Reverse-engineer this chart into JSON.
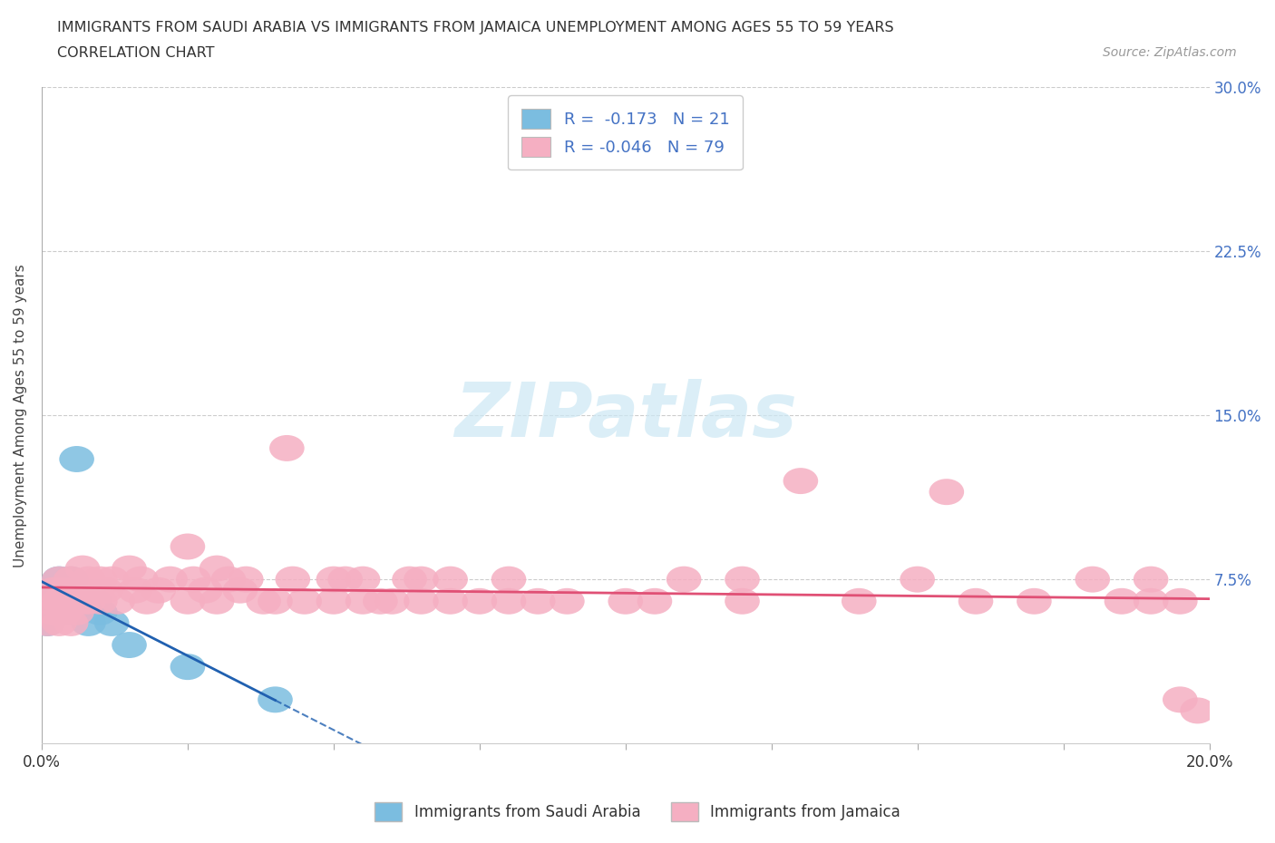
{
  "title_line1": "IMMIGRANTS FROM SAUDI ARABIA VS IMMIGRANTS FROM JAMAICA UNEMPLOYMENT AMONG AGES 55 TO 59 YEARS",
  "title_line2": "CORRELATION CHART",
  "source": "Source: ZipAtlas.com",
  "ylabel": "Unemployment Among Ages 55 to 59 years",
  "xlim": [
    0.0,
    0.2
  ],
  "ylim": [
    0.0,
    0.3
  ],
  "xtick_positions": [
    0.0,
    0.025,
    0.05,
    0.075,
    0.1,
    0.125,
    0.15,
    0.175,
    0.2
  ],
  "xticklabels": [
    "0.0%",
    "",
    "",
    "",
    "",
    "",
    "",
    "",
    "20.0%"
  ],
  "ytick_positions": [
    0.075,
    0.15,
    0.225,
    0.3
  ],
  "ytick_labels": [
    "7.5%",
    "15.0%",
    "22.5%",
    "30.0%"
  ],
  "saudi_R": -0.173,
  "saudi_N": 21,
  "jamaica_R": -0.046,
  "jamaica_N": 79,
  "saudi_color": "#7bbde0",
  "jamaica_color": "#f5afc2",
  "saudi_line_color": "#2060b0",
  "jamaica_line_color": "#e05075",
  "watermark_color": "#cce8f4",
  "saudi_x": [
    0.001,
    0.001,
    0.002,
    0.002,
    0.003,
    0.003,
    0.004,
    0.004,
    0.005,
    0.005,
    0.006,
    0.006,
    0.007,
    0.008,
    0.008,
    0.009,
    0.01,
    0.012,
    0.015,
    0.025,
    0.04
  ],
  "saudi_y": [
    0.065,
    0.055,
    0.07,
    0.06,
    0.075,
    0.065,
    0.07,
    0.06,
    0.075,
    0.065,
    0.13,
    0.06,
    0.065,
    0.065,
    0.055,
    0.065,
    0.06,
    0.055,
    0.045,
    0.035,
    0.02
  ],
  "jamaica_x": [
    0.001,
    0.001,
    0.002,
    0.002,
    0.003,
    0.003,
    0.003,
    0.004,
    0.004,
    0.005,
    0.005,
    0.005,
    0.006,
    0.006,
    0.007,
    0.007,
    0.008,
    0.008,
    0.009,
    0.01,
    0.01,
    0.011,
    0.012,
    0.013,
    0.015,
    0.016,
    0.017,
    0.018,
    0.02,
    0.022,
    0.025,
    0.025,
    0.026,
    0.028,
    0.03,
    0.03,
    0.032,
    0.034,
    0.035,
    0.038,
    0.04,
    0.042,
    0.043,
    0.045,
    0.05,
    0.05,
    0.052,
    0.055,
    0.055,
    0.058,
    0.06,
    0.063,
    0.065,
    0.065,
    0.07,
    0.07,
    0.075,
    0.08,
    0.08,
    0.085,
    0.09,
    0.1,
    0.105,
    0.11,
    0.12,
    0.12,
    0.13,
    0.14,
    0.15,
    0.155,
    0.16,
    0.17,
    0.18,
    0.185,
    0.19,
    0.19,
    0.195,
    0.195,
    0.198
  ],
  "jamaica_y": [
    0.065,
    0.055,
    0.07,
    0.06,
    0.075,
    0.065,
    0.055,
    0.07,
    0.06,
    0.075,
    0.065,
    0.055,
    0.07,
    0.06,
    0.08,
    0.065,
    0.075,
    0.065,
    0.07,
    0.075,
    0.065,
    0.07,
    0.075,
    0.065,
    0.08,
    0.07,
    0.075,
    0.065,
    0.07,
    0.075,
    0.09,
    0.065,
    0.075,
    0.07,
    0.08,
    0.065,
    0.075,
    0.07,
    0.075,
    0.065,
    0.065,
    0.135,
    0.075,
    0.065,
    0.075,
    0.065,
    0.075,
    0.065,
    0.075,
    0.065,
    0.065,
    0.075,
    0.065,
    0.075,
    0.065,
    0.075,
    0.065,
    0.075,
    0.065,
    0.065,
    0.065,
    0.065,
    0.065,
    0.075,
    0.065,
    0.075,
    0.12,
    0.065,
    0.075,
    0.115,
    0.065,
    0.065,
    0.075,
    0.065,
    0.065,
    0.075,
    0.065,
    0.02,
    0.015
  ]
}
